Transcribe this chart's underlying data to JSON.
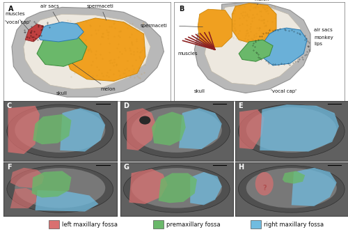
{
  "figure_width": 5.0,
  "figure_height": 3.33,
  "dpi": 100,
  "background_color": "#ffffff",
  "legend_items": [
    {
      "label": "left maxillary fossa",
      "color": "#d97070"
    },
    {
      "label": "premaxillary fossa",
      "color": "#6ab86a"
    },
    {
      "label": "right maxillary fossa",
      "color": "#70bce0"
    }
  ],
  "legend_fontsize": 6.0,
  "border_color": "#555555",
  "label_fontsize": 7,
  "label_color": "#111111",
  "annot_fontsize": 5.0,
  "red_c": "#d97070",
  "green_c": "#6ab86a",
  "blue_c": "#70bce0",
  "skull_gray": "#b8b8b8",
  "inner_cream": "#ede8df",
  "sperm_orange": "#f0a020",
  "air_blue": "#6ab0d8",
  "melon_green": "#6ab86a",
  "muscles_red": "#8b2020",
  "bg_photo": "#787878"
}
